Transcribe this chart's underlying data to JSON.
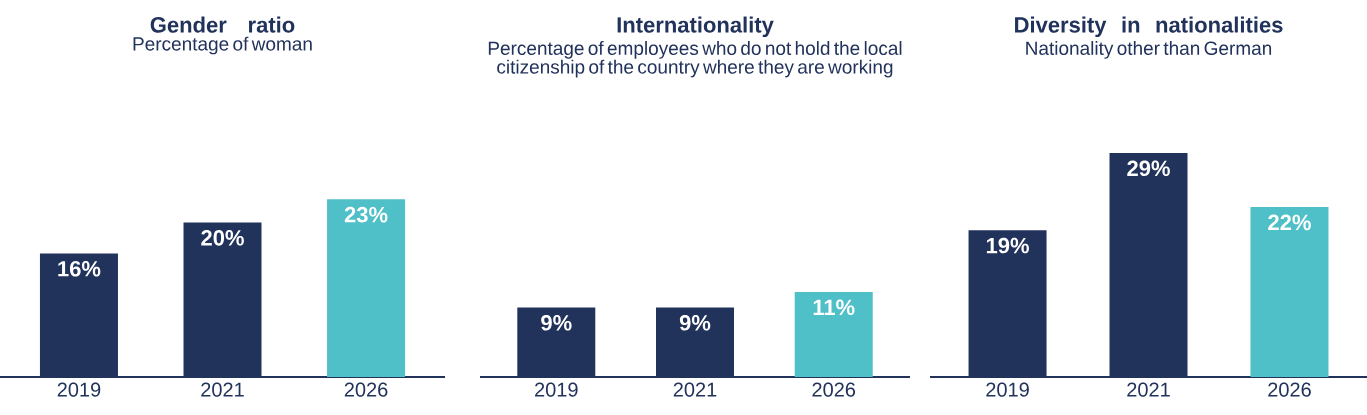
{
  "chart_data": [
    {
      "type": "bar",
      "title": "Gender ratio",
      "subtitle": "Percentage of woman",
      "categories": [
        "2019",
        "2021",
        "2026"
      ],
      "values": [
        16,
        20,
        23
      ],
      "colors": [
        "#21325b",
        "#21325b",
        "#4fbfc8"
      ],
      "value_labels": [
        "16%",
        "20%",
        "23%"
      ]
    },
    {
      "type": "bar",
      "title": "Internationality",
      "subtitle": "Percentage of employees who do not hold the local citizenship of the country where they are working",
      "categories": [
        "2019",
        "2021",
        "2026"
      ],
      "values": [
        9,
        9,
        11
      ],
      "colors": [
        "#21325b",
        "#21325b",
        "#4fbfc8"
      ],
      "value_labels": [
        "9%",
        "9%",
        "11%"
      ]
    },
    {
      "type": "bar",
      "title": "Diversity in nationalities",
      "subtitle": "Nationality other than German",
      "categories": [
        "2019",
        "2021",
        "2026"
      ],
      "values": [
        19,
        29,
        22
      ],
      "colors": [
        "#21325b",
        "#21325b",
        "#4fbfc8"
      ],
      "value_labels": [
        "19%",
        "29%",
        "22%"
      ]
    }
  ]
}
